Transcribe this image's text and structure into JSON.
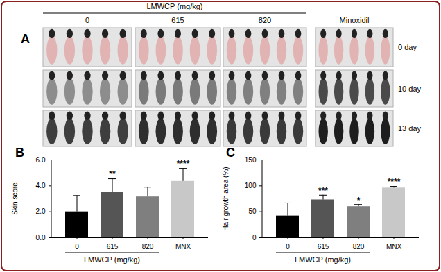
{
  "panel_a": {
    "panel": "A",
    "title": "LMWCP (mg/kg)",
    "groups": [
      "0",
      "615",
      "820",
      "Minoxidil"
    ],
    "days": [
      "0 day",
      "10 day",
      "13 day"
    ]
  },
  "chart_data": [
    {
      "panel": "B",
      "type": "bar",
      "ylabel": "Skin score",
      "xlabel": "LMWCP (mg/kg)",
      "categories": [
        "0",
        "615",
        "820",
        "MNX"
      ],
      "values": [
        2.0,
        3.5,
        3.15,
        4.35
      ],
      "error": [
        1.25,
        1.05,
        0.75,
        1.0
      ],
      "annotations": [
        null,
        "**",
        null,
        "****"
      ],
      "colors": [
        "#000000",
        "#555555",
        "#7f7f7f",
        "#c8c8c8"
      ],
      "ylim": [
        0,
        6
      ],
      "yticks": [
        0,
        2,
        4,
        6
      ],
      "grid": false
    },
    {
      "panel": "C",
      "type": "bar",
      "ylabel": "Hair growth area (%)",
      "xlabel": "LMWCP (mg/kg)",
      "categories": [
        "0",
        "615",
        "820",
        "MNX"
      ],
      "values": [
        42,
        73,
        60,
        96
      ],
      "error": [
        25,
        9,
        4,
        3
      ],
      "annotations": [
        null,
        "***",
        "*",
        "****"
      ],
      "colors": [
        "#000000",
        "#555555",
        "#7f7f7f",
        "#c8c8c8"
      ],
      "ylim": [
        0,
        150
      ],
      "yticks": [
        0,
        50,
        100,
        150
      ],
      "grid": false
    }
  ]
}
